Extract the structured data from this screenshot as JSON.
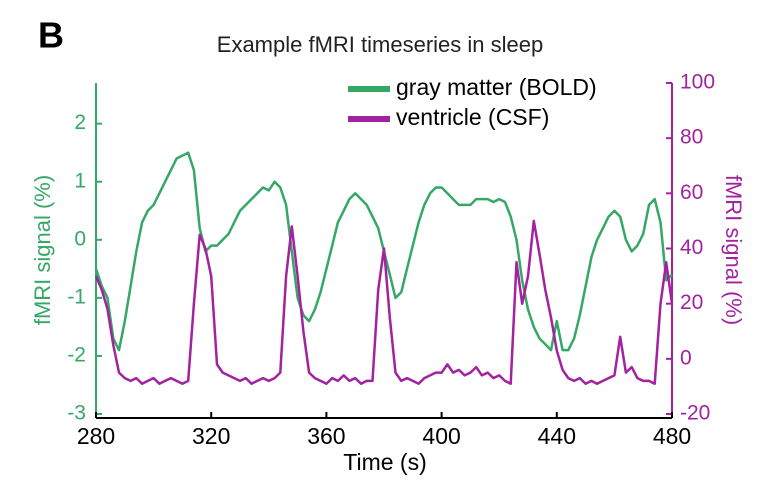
{
  "chart_data": {
    "type": "line",
    "panel_label": "B",
    "title": "Example fMRI timeseries in sleep",
    "x_label": "Time (s)",
    "y_label": "fMRI signal (%)",
    "y2_label": "fMRI signal (%)",
    "x": [
      280,
      282,
      284,
      286,
      288,
      290,
      292,
      294,
      296,
      298,
      300,
      302,
      304,
      306,
      308,
      310,
      312,
      314,
      316,
      318,
      320,
      322,
      324,
      326,
      328,
      330,
      332,
      334,
      336,
      338,
      340,
      342,
      344,
      346,
      348,
      350,
      352,
      354,
      356,
      358,
      360,
      362,
      364,
      366,
      368,
      370,
      372,
      374,
      376,
      378,
      380,
      382,
      384,
      386,
      388,
      390,
      392,
      394,
      396,
      398,
      400,
      402,
      404,
      406,
      408,
      410,
      412,
      414,
      416,
      418,
      420,
      422,
      424,
      426,
      428,
      430,
      432,
      434,
      436,
      438,
      440,
      442,
      444,
      446,
      448,
      450,
      452,
      454,
      456,
      458,
      460,
      462,
      464,
      466,
      468,
      470,
      472,
      474,
      476,
      478,
      480
    ],
    "series": [
      {
        "name": "gray matter (BOLD)",
        "color": "#35a866",
        "values": [
          -0.5,
          -0.8,
          -1.0,
          -1.7,
          -1.9,
          -1.4,
          -0.8,
          -0.2,
          0.3,
          0.5,
          0.6,
          0.8,
          1.0,
          1.2,
          1.4,
          1.45,
          1.5,
          1.2,
          0.2,
          -0.2,
          -0.1,
          -0.1,
          0.0,
          0.1,
          0.3,
          0.5,
          0.6,
          0.7,
          0.8,
          0.9,
          0.85,
          1.0,
          0.9,
          0.6,
          -0.2,
          -1.0,
          -1.3,
          -1.4,
          -1.2,
          -0.9,
          -0.5,
          -0.1,
          0.3,
          0.5,
          0.7,
          0.8,
          0.7,
          0.6,
          0.4,
          0.2,
          -0.2,
          -0.6,
          -1.0,
          -0.9,
          -0.5,
          -0.1,
          0.3,
          0.6,
          0.8,
          0.9,
          0.9,
          0.8,
          0.7,
          0.6,
          0.6,
          0.6,
          0.7,
          0.7,
          0.7,
          0.65,
          0.7,
          0.65,
          0.4,
          0.0,
          -0.7,
          -1.2,
          -1.5,
          -1.7,
          -1.8,
          -1.9,
          -1.4,
          -1.9,
          -1.9,
          -1.7,
          -1.3,
          -0.8,
          -0.3,
          0.0,
          0.2,
          0.4,
          0.5,
          0.4,
          0.0,
          -0.2,
          -0.1,
          0.1,
          0.6,
          0.7,
          0.3,
          -0.7,
          -0.6
        ]
      },
      {
        "name": "ventricle (CSF)",
        "color": "#a3229f",
        "axis": "y2",
        "values": [
          30,
          25,
          18,
          5,
          -5,
          -7,
          -8,
          -7,
          -9,
          -8,
          -7,
          -9,
          -8,
          -7,
          -8,
          -9,
          -8,
          20,
          45,
          40,
          30,
          -2,
          -5,
          -6,
          -7,
          -8,
          -7,
          -9,
          -8,
          -7,
          -8,
          -7,
          -5,
          30,
          48,
          30,
          10,
          -5,
          -7,
          -8,
          -9,
          -7,
          -8,
          -6,
          -8,
          -7,
          -9,
          -8,
          -8,
          25,
          40,
          15,
          -5,
          -8,
          -7,
          -8,
          -9,
          -7,
          -6,
          -5,
          -5,
          -2,
          -5,
          -4,
          -6,
          -5,
          -3,
          -6,
          -5,
          -7,
          -6,
          -8,
          -9,
          35,
          20,
          30,
          50,
          38,
          25,
          15,
          3,
          -4,
          -7,
          -8,
          -7,
          -9,
          -8,
          -9,
          -8,
          -7,
          -6,
          8,
          -5,
          -3,
          -7,
          -8,
          -8,
          -9,
          20,
          35,
          20
        ]
      }
    ],
    "xlim": [
      280,
      480
    ],
    "xticks": [
      280,
      320,
      360,
      400,
      440,
      480
    ],
    "ylim": [
      -3,
      2.7
    ],
    "yticks": [
      -3,
      -2,
      -1,
      0,
      1,
      2
    ],
    "y2lim": [
      -20,
      100
    ],
    "y2ticks": [
      -20,
      0,
      20,
      40,
      60,
      80,
      100
    ],
    "legend": "top-right"
  }
}
